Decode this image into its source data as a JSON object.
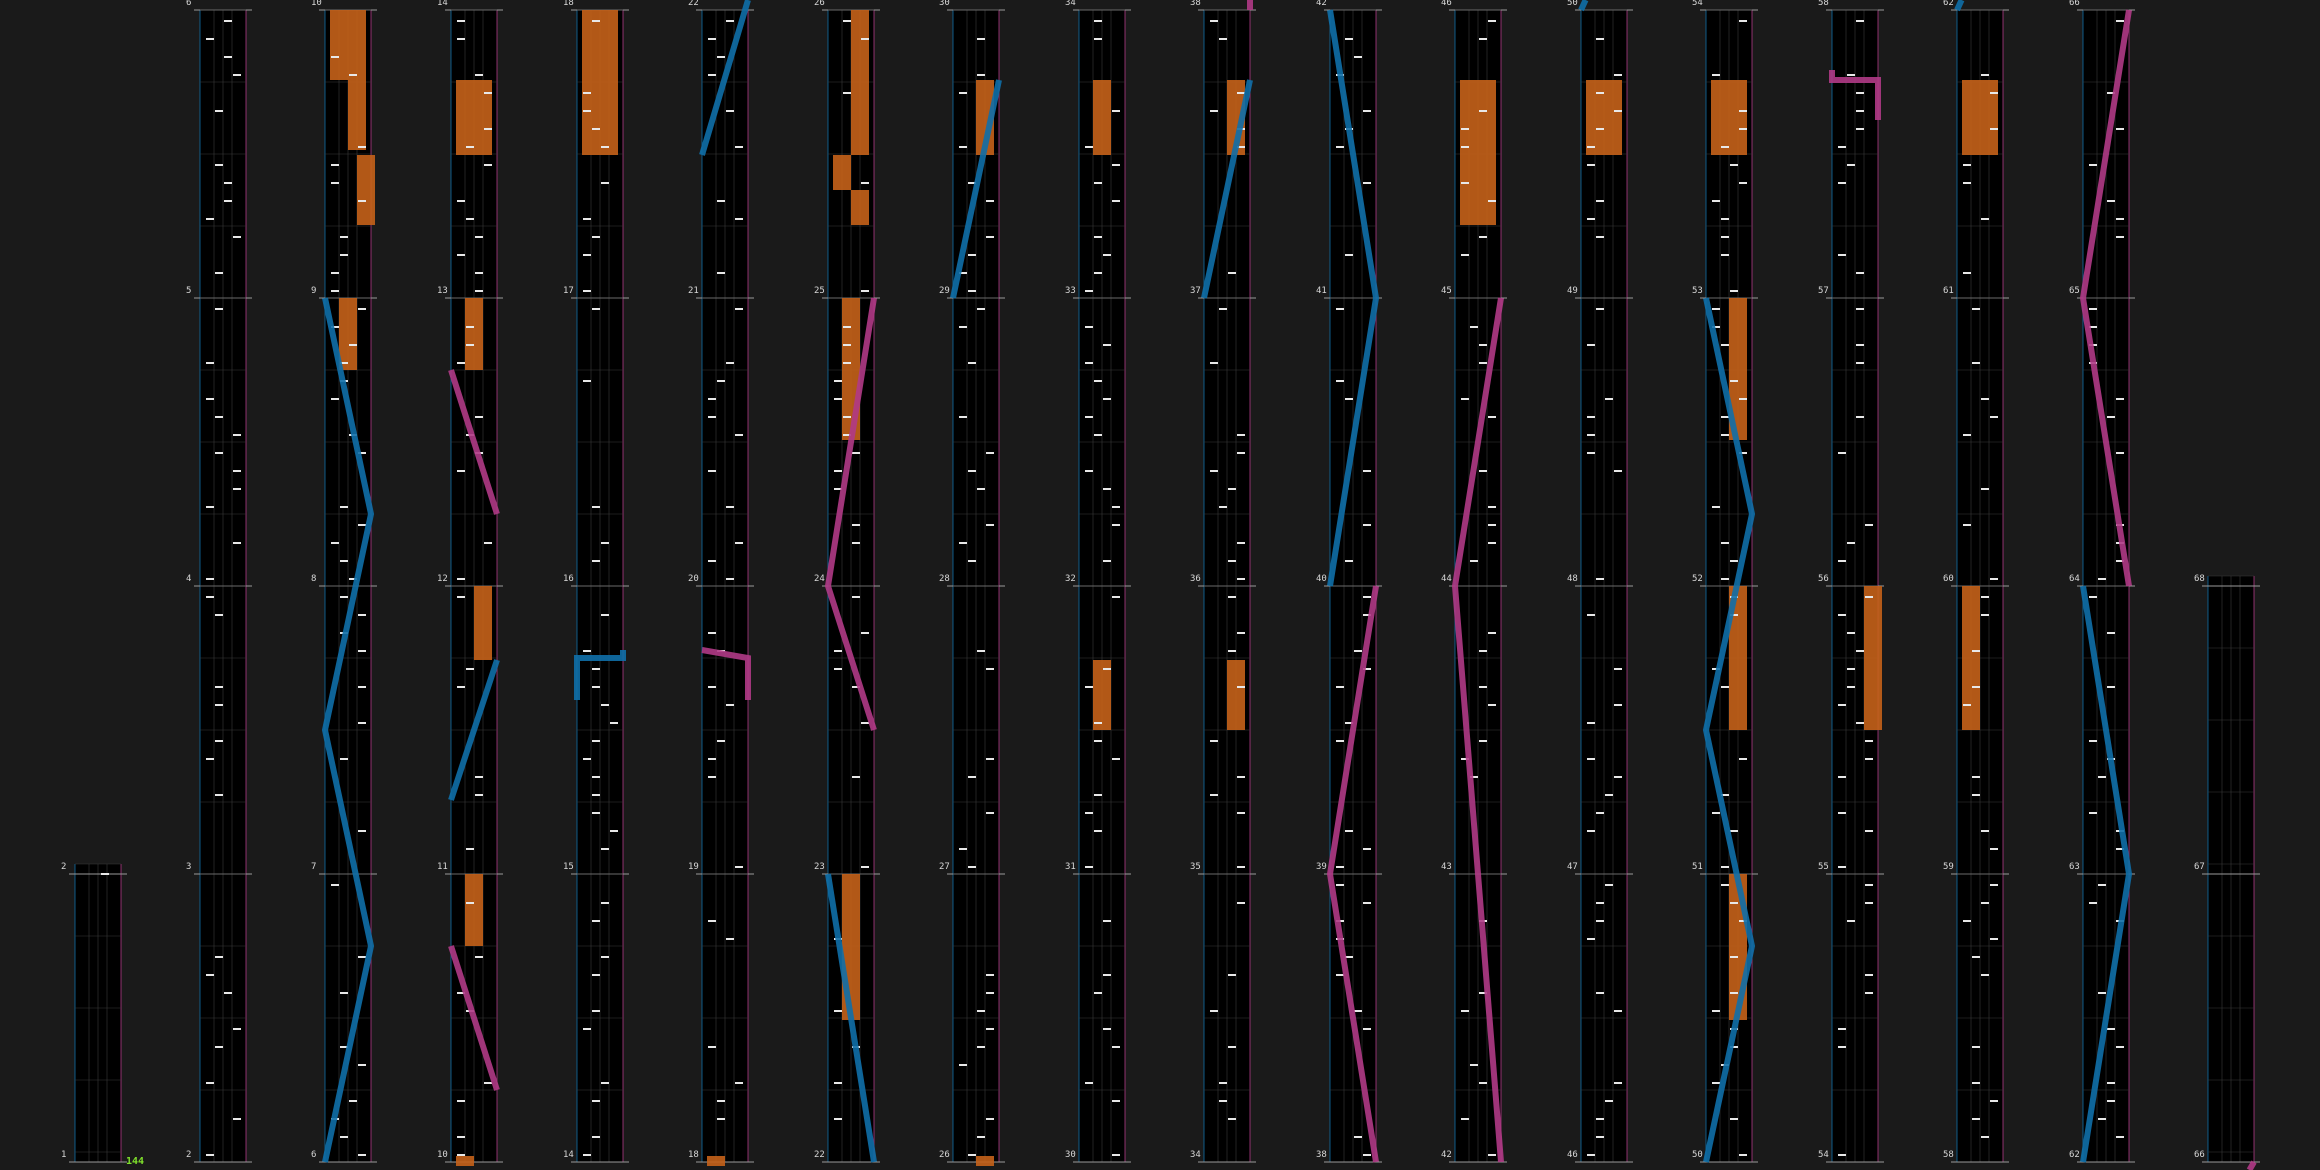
{
  "chart_name": "chart-overview",
  "combo": "144",
  "colors": {
    "background": "#1a1a1a",
    "lane": "#000000",
    "grid": "#3a3a3a",
    "note": "#e8e8e8",
    "hold": "#c5621a",
    "left_laser": "#0f6fa8",
    "right_laser": "#b03a86",
    "combo": "#7fe02b"
  },
  "measure_labels": {
    "col0": [
      2,
      1
    ],
    "col1": [
      6,
      5,
      4,
      3,
      2
    ],
    "col2": [
      10,
      9,
      8,
      7,
      6
    ],
    "col3": [
      14,
      13,
      12,
      11,
      10
    ],
    "col4": [
      18,
      17,
      16,
      15,
      14
    ],
    "col5": [
      22,
      21,
      20,
      19,
      18
    ],
    "col6": [
      26,
      25,
      24,
      23,
      22
    ],
    "col7": [
      30,
      29,
      28,
      27,
      26
    ],
    "col8": [
      34,
      33,
      32,
      31,
      30
    ],
    "col9": [
      38,
      37,
      36,
      35,
      34
    ],
    "col10": [
      42,
      41,
      40,
      39,
      38
    ],
    "col11": [
      46,
      45,
      44,
      43,
      42
    ],
    "col12": [
      50,
      49,
      48,
      47,
      46
    ],
    "col13": [
      54,
      53,
      52,
      51,
      50
    ],
    "col14": [
      58,
      57,
      56,
      55,
      54
    ],
    "col15": [
      62,
      61,
      60,
      59,
      58
    ],
    "col16": [
      66,
      65,
      64,
      63,
      62
    ],
    "col17": [
      68,
      67,
      66
    ]
  }
}
